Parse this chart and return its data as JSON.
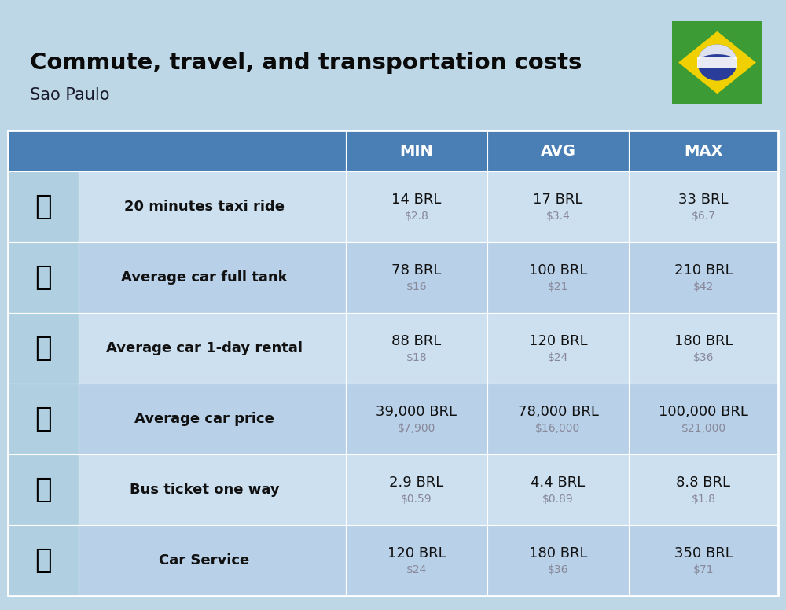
{
  "title": "Commute, travel, and transportation costs",
  "subtitle": "Sao Paulo",
  "background_color": "#bdd7e7",
  "header_bg_color": "#4a7fb5",
  "header_text_color": "#ffffff",
  "row_bg_color_light": "#cce0f0",
  "row_bg_color_dark": "#b8d0e8",
  "icon_col_bg": "#b0cfe0",
  "text_dark": "#111111",
  "text_gray": "#888899",
  "col_headers": [
    "MIN",
    "AVG",
    "MAX"
  ],
  "rows": [
    {
      "label": "20 minutes taxi ride",
      "min_brl": "14 BRL",
      "min_usd": "$2.8",
      "avg_brl": "17 BRL",
      "avg_usd": "$3.4",
      "max_brl": "33 BRL",
      "max_usd": "$6.7"
    },
    {
      "label": "Average car full tank",
      "min_brl": "78 BRL",
      "min_usd": "$16",
      "avg_brl": "100 BRL",
      "avg_usd": "$21",
      "max_brl": "210 BRL",
      "max_usd": "$42"
    },
    {
      "label": "Average car 1-day rental",
      "min_brl": "88 BRL",
      "min_usd": "$18",
      "avg_brl": "120 BRL",
      "avg_usd": "$24",
      "max_brl": "180 BRL",
      "max_usd": "$36"
    },
    {
      "label": "Average car price",
      "min_brl": "39,000 BRL",
      "min_usd": "$7,900",
      "avg_brl": "78,000 BRL",
      "avg_usd": "$16,000",
      "max_brl": "100,000 BRL",
      "max_usd": "$21,000"
    },
    {
      "label": "Bus ticket one way",
      "min_brl": "2.9 BRL",
      "min_usd": "$0.59",
      "avg_brl": "4.4 BRL",
      "avg_usd": "$0.89",
      "max_brl": "8.8 BRL",
      "max_usd": "$1.8"
    },
    {
      "label": "Car Service",
      "min_brl": "120 BRL",
      "min_usd": "$24",
      "avg_brl": "180 BRL",
      "avg_usd": "$36",
      "max_brl": "350 BRL",
      "max_usd": "$71"
    }
  ]
}
